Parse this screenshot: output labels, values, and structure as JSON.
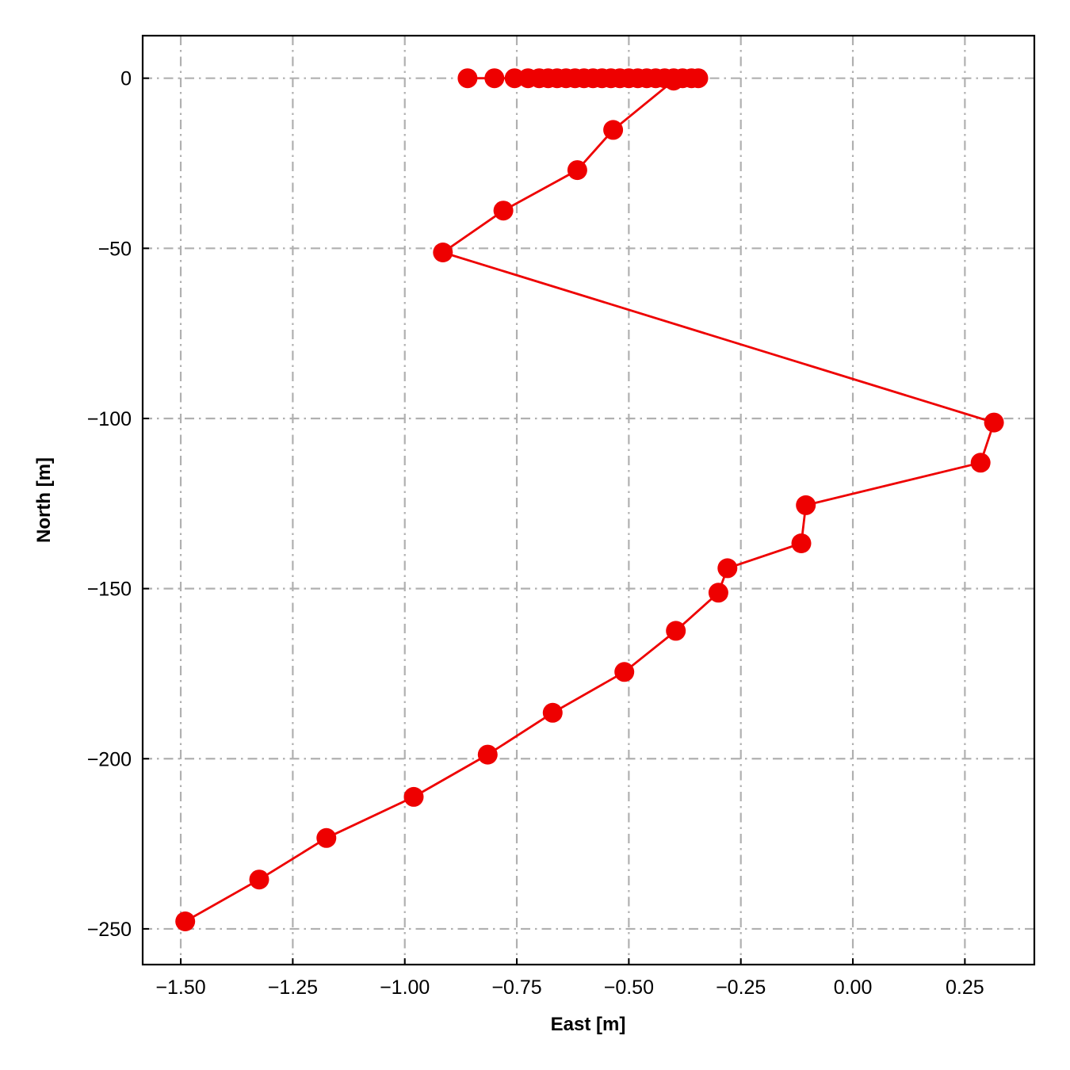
{
  "chart_data": {
    "type": "line",
    "title": "",
    "xlabel": "East [m]",
    "ylabel": "North [m]",
    "xlim": [
      -1.585,
      0.405
    ],
    "ylim": [
      -260.5,
      12.5
    ],
    "x_ticks": [
      -1.5,
      -1.25,
      -1.0,
      -0.75,
      -0.5,
      -0.25,
      0.0,
      0.25
    ],
    "x_tick_labels": [
      "−1.50",
      "−1.25",
      "−1.00",
      "−0.75",
      "−0.50",
      "−0.25",
      "0.00",
      "0.25"
    ],
    "y_ticks": [
      0,
      -50,
      -100,
      -150,
      -200,
      -250
    ],
    "y_tick_labels": [
      "0",
      "−50",
      "−100",
      "−150",
      "−200",
      "−250"
    ],
    "grid": true,
    "grid_style": "dash-dot",
    "legend": "none",
    "series": [
      {
        "color": "#ee0000",
        "marker": "circle",
        "x": [
          -0.86,
          -0.8,
          -0.755,
          -0.725,
          -0.7,
          -0.68,
          -0.66,
          -0.64,
          -0.62,
          -0.6,
          -0.58,
          -0.56,
          -0.54,
          -0.52,
          -0.5,
          -0.48,
          -0.46,
          -0.44,
          -0.42,
          -0.4,
          -0.38,
          -0.36,
          -0.345,
          -0.4,
          -0.535,
          -0.615,
          -0.78,
          -0.915,
          0.315,
          0.285,
          -0.105,
          -0.115,
          -0.28,
          -0.3,
          -0.395,
          -0.51,
          -0.67,
          -0.815,
          -0.98,
          -1.175,
          -1.325,
          -1.49
        ],
        "y": [
          0,
          0,
          0,
          0,
          0,
          0,
          0,
          0,
          0,
          0,
          0,
          0,
          0,
          0,
          0,
          0,
          0,
          0,
          0,
          0,
          0,
          0,
          0,
          -0.7,
          -15.2,
          -27.0,
          -38.9,
          -51.2,
          -101.2,
          -113.0,
          -125.5,
          -136.7,
          -144.0,
          -151.2,
          -162.4,
          -174.5,
          -186.5,
          -198.8,
          -211.2,
          -223.3,
          -235.5,
          -247.8
        ]
      }
    ]
  }
}
